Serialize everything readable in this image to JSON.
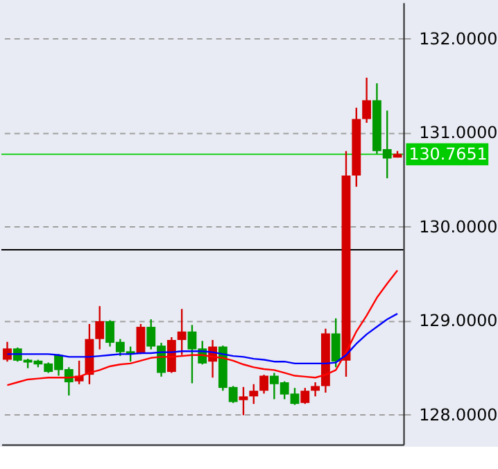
{
  "chart_data": {
    "type": "candlestick",
    "categories": [
      null,
      null,
      null,
      null,
      null,
      null,
      null,
      null,
      null,
      null,
      null,
      null,
      null,
      null,
      null,
      null,
      null,
      null,
      null,
      null,
      null,
      null,
      null,
      null,
      null,
      null,
      null,
      null,
      null,
      null,
      null,
      null,
      null,
      null,
      null,
      null,
      null,
      null,
      null
    ],
    "ohlc": [
      [
        128.58,
        128.77,
        128.56,
        128.7
      ],
      [
        128.7,
        128.71,
        128.56,
        128.57
      ],
      [
        128.58,
        128.59,
        128.49,
        128.55
      ],
      [
        128.57,
        128.58,
        128.5,
        128.53
      ],
      [
        128.54,
        128.55,
        128.44,
        128.45
      ],
      [
        128.63,
        128.64,
        128.41,
        128.47
      ],
      [
        128.48,
        128.5,
        128.2,
        128.34
      ],
      [
        128.35,
        128.57,
        128.32,
        128.41
      ],
      [
        128.42,
        128.96,
        128.32,
        128.8
      ],
      [
        128.8,
        129.15,
        128.69,
        128.99
      ],
      [
        128.99,
        129.0,
        128.72,
        128.76
      ],
      [
        128.77,
        128.8,
        128.62,
        128.66
      ],
      [
        128.67,
        128.72,
        128.56,
        128.64
      ],
      [
        128.65,
        128.96,
        128.64,
        128.93
      ],
      [
        128.93,
        129.01,
        128.69,
        128.72
      ],
      [
        128.73,
        128.76,
        128.4,
        128.44
      ],
      [
        128.45,
        128.82,
        128.44,
        128.79
      ],
      [
        128.79,
        129.12,
        128.63,
        128.88
      ],
      [
        128.88,
        128.95,
        128.33,
        128.69
      ],
      [
        128.7,
        128.78,
        128.53,
        128.54
      ],
      [
        128.56,
        128.79,
        128.39,
        128.72
      ],
      [
        128.72,
        128.73,
        128.25,
        128.28
      ],
      [
        128.29,
        128.3,
        128.12,
        128.13
      ],
      [
        128.15,
        128.29,
        127.99,
        128.19
      ],
      [
        128.19,
        128.32,
        128.11,
        128.25
      ],
      [
        128.25,
        128.42,
        128.22,
        128.41
      ],
      [
        128.41,
        128.44,
        128.16,
        128.32
      ],
      [
        128.34,
        128.35,
        128.16,
        128.21
      ],
      [
        128.22,
        128.28,
        128.1,
        128.11
      ],
      [
        128.12,
        128.28,
        128.11,
        128.25
      ],
      [
        128.25,
        128.34,
        128.19,
        128.3
      ],
      [
        128.3,
        128.91,
        128.23,
        128.86
      ],
      [
        128.86,
        129.02,
        128.5,
        128.56
      ],
      [
        128.57,
        130.8,
        128.4,
        130.54
      ],
      [
        130.54,
        131.26,
        130.42,
        131.14
      ],
      [
        131.14,
        131.58,
        131.1,
        131.34
      ],
      [
        131.34,
        131.52,
        130.77,
        130.8
      ],
      [
        130.82,
        131.23,
        130.51,
        130.72
      ],
      [
        130.73,
        130.8,
        130.73,
        130.77
      ]
    ],
    "colors": [
      "#d40000",
      "#009900",
      "#009900",
      "#009900",
      "#009900",
      "#009900",
      "#009900",
      "#d40000",
      "#d40000",
      "#d40000",
      "#009900",
      "#009900",
      "#009900",
      "#d40000",
      "#009900",
      "#009900",
      "#d40000",
      "#d40000",
      "#009900",
      "#009900",
      "#d40000",
      "#009900",
      "#009900",
      "#d40000",
      "#d40000",
      "#d40000",
      "#009900",
      "#009900",
      "#009900",
      "#d40000",
      "#d40000",
      "#d40000",
      "#009900",
      "#d40000",
      "#d40000",
      "#d40000",
      "#009900",
      "#009900",
      "#d40000"
    ],
    "series": [
      {
        "type": "line",
        "color": "#ff0000",
        "values": [
          128.31,
          128.34,
          128.37,
          128.38,
          128.39,
          128.39,
          128.39,
          128.4,
          128.44,
          128.47,
          128.51,
          128.53,
          128.54,
          128.57,
          128.6,
          128.61,
          128.61,
          128.62,
          128.63,
          128.63,
          128.61,
          128.6,
          128.57,
          128.53,
          128.5,
          128.48,
          128.47,
          128.44,
          128.41,
          128.4,
          128.39,
          128.42,
          128.47,
          128.66,
          128.88,
          129.05,
          129.24,
          129.39,
          129.53
        ]
      },
      {
        "type": "line",
        "color": "#0000ff",
        "values": [
          128.64,
          128.64,
          128.64,
          128.64,
          128.64,
          128.63,
          128.61,
          128.61,
          128.61,
          128.62,
          128.63,
          128.64,
          128.64,
          128.65,
          128.65,
          128.66,
          128.66,
          128.67,
          128.67,
          128.67,
          128.66,
          128.64,
          128.62,
          128.61,
          128.59,
          128.58,
          128.56,
          128.56,
          128.54,
          128.54,
          128.54,
          128.54,
          128.55,
          128.63,
          128.75,
          128.85,
          128.93,
          129.01,
          129.07
        ]
      }
    ],
    "ylim": [
      127.68,
      132.38
    ],
    "yticks": [
      {
        "value": 128,
        "label": "128.0000"
      },
      {
        "value": 129,
        "label": "129.0000"
      },
      {
        "value": 130,
        "label": "130.0000"
      },
      {
        "value": 131,
        "label": "131.0000"
      },
      {
        "value": 132,
        "label": "132.0000"
      }
    ],
    "grid": "y",
    "ref_lines": [
      {
        "axis": "y",
        "value": 130.7651,
        "label": "130.7651",
        "color": "#00cc00"
      },
      {
        "axis": "y",
        "value": 129.75,
        "label": null,
        "color": "#000000"
      }
    ]
  }
}
